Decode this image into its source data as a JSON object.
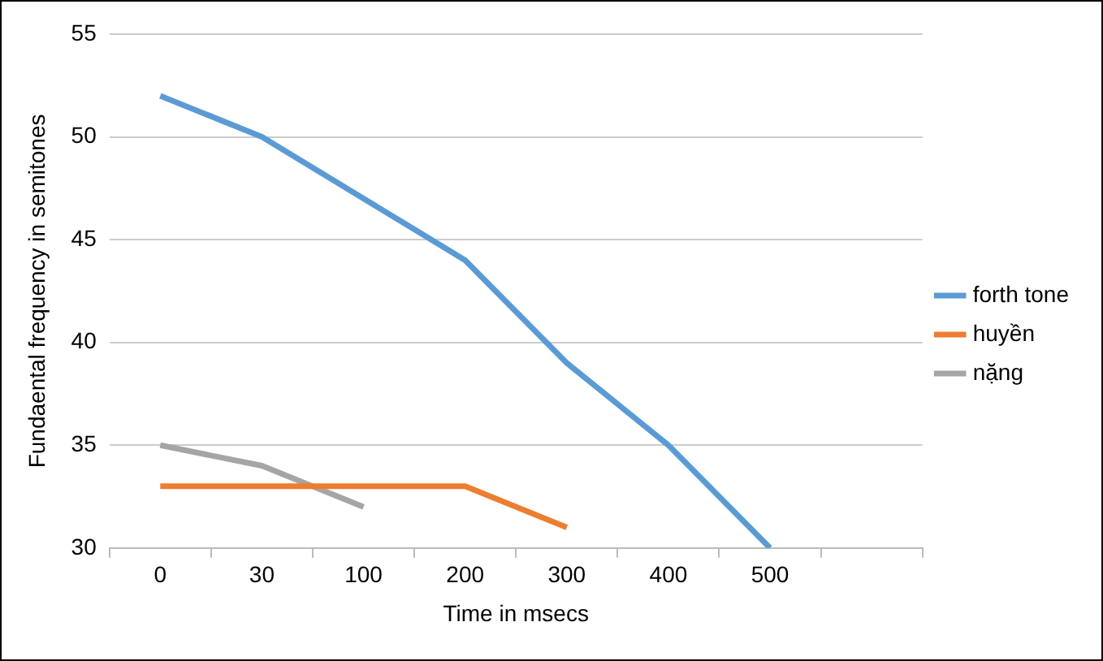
{
  "chart_data": {
    "type": "line",
    "xlabel": "Time in msecs",
    "ylabel": "Fundaental frequency in semitones",
    "categories": [
      "0",
      "30",
      "100",
      "200",
      "300",
      "400",
      "500",
      null
    ],
    "series": [
      {
        "name": "forth tone",
        "color": "#5b9bd5",
        "values": [
          52,
          50,
          47,
          44,
          39,
          35,
          30,
          null
        ]
      },
      {
        "name": "huyền",
        "color": "#ed7d31",
        "values": [
          33,
          33,
          33,
          33,
          31,
          null,
          null,
          null
        ]
      },
      {
        "name": "nặng",
        "color": "#a5a5a5",
        "values": [
          35,
          34,
          32,
          null,
          null,
          null,
          null,
          null
        ]
      }
    ],
    "ylim": [
      30,
      55
    ],
    "yticks": [
      30,
      35,
      40,
      45,
      50,
      55
    ],
    "grid": "y",
    "legend": "right",
    "marker": "none",
    "line_style": "solid"
  }
}
